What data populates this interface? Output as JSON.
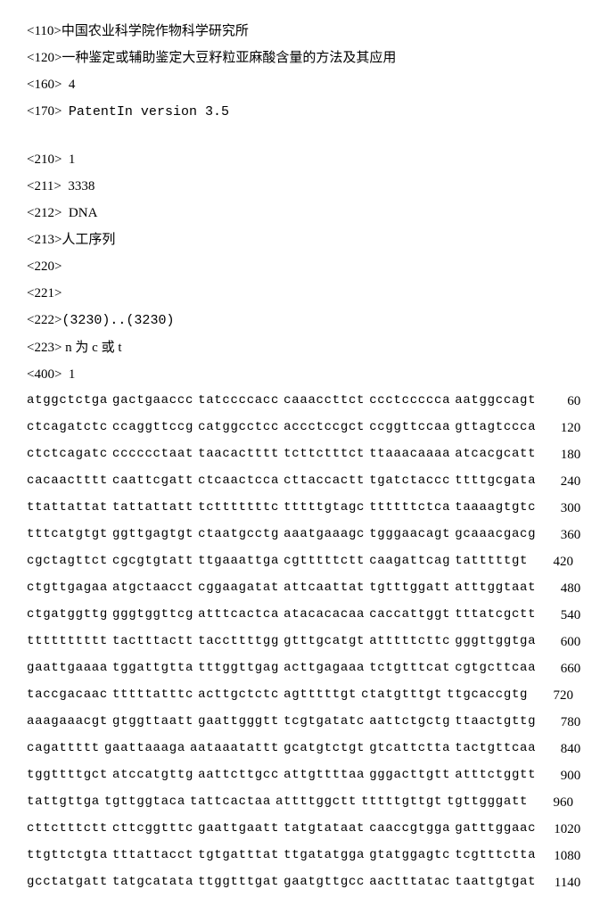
{
  "header": {
    "l110": {
      "tag": "<110>",
      "val": "中国农业科学院作物科学研究所"
    },
    "l120": {
      "tag": "<120>",
      "val": "一种鉴定或辅助鉴定大豆籽粒亚麻酸含量的方法及其应用"
    },
    "l160": {
      "tag": "<160>",
      "val": "4"
    },
    "l170": {
      "tag": "<170>",
      "val": "PatentIn version 3.5"
    },
    "l210": {
      "tag": "<210>",
      "val": "1"
    },
    "l211": {
      "tag": "<211>",
      "val": "3338"
    },
    "l212": {
      "tag": "<212>",
      "val": "DNA"
    },
    "l213": {
      "tag": "<213>",
      "val": "人工序列"
    },
    "l220": {
      "tag": "<220>",
      "val": ""
    },
    "l221": {
      "tag": "<221>",
      "val": ""
    },
    "l222": {
      "tag": "<222>",
      "val": "(3230)..(3230)"
    },
    "l223": {
      "tag": "<223>",
      "val": "n 为 c 或 t"
    },
    "l400": {
      "tag": "<400>",
      "val": "1"
    }
  },
  "sequence": [
    {
      "g": [
        "atggctctga",
        "gactgaaccc",
        "tatccccacc",
        "caaaccttct",
        "ccctccccca",
        "aatggccagt"
      ],
      "n": "60"
    },
    {
      "g": [
        "ctcagatctc",
        "ccaggttccg",
        "catggcctcc",
        "accctccgct",
        "ccggttccaa",
        "gttagtccca"
      ],
      "n": "120"
    },
    {
      "g": [
        "ctctcagatc",
        "cccccctaat",
        "taacactttt",
        "tcttctttct",
        "ttaaacaaaa",
        "atcacgcatt"
      ],
      "n": "180"
    },
    {
      "g": [
        "cacaactttt",
        "caattcgatt",
        "ctcaactcca",
        "cttaccactt",
        "tgatctaccc",
        "ttttgcgata"
      ],
      "n": "240"
    },
    {
      "g": [
        "ttattattat",
        "tattattatt",
        "tctttttttc",
        "tttttgtagc",
        "ttttttctca",
        "taaaagtgtc"
      ],
      "n": "300"
    },
    {
      "g": [
        "tttcatgtgt",
        "ggttgagtgt",
        "ctaatgcctg",
        "aaatgaaagc",
        "tgggaacagt",
        "gcaaacgacg"
      ],
      "n": "360"
    },
    {
      "g": [
        "cgctagttct",
        "cgcgtgtatt",
        "ttgaaattga",
        "cgtttttctt",
        "caagattcag",
        "tatttttgt"
      ],
      "n": "420"
    },
    {
      "g": [
        "ctgttgagaa",
        "atgctaacct",
        "cggaagatat",
        "attcaattat",
        "tgtttggatt",
        "atttggtaat"
      ],
      "n": "480"
    },
    {
      "g": [
        "ctgatggttg",
        "gggtggttcg",
        "atttcactca",
        "atacacacaa",
        "caccattggt",
        "tttatcgctt"
      ],
      "n": "540"
    },
    {
      "g": [
        "tttttttttt",
        "tactttactt",
        "taccttttgg",
        "gtttgcatgt",
        "atttttcttc",
        "gggttggtga"
      ],
      "n": "600"
    },
    {
      "g": [
        "gaattgaaaa",
        "tggattgtta",
        "tttggttgag",
        "acttgagaaa",
        "tctgtttcat",
        "cgtgcttcaa"
      ],
      "n": "660"
    },
    {
      "g": [
        "taccgacaac",
        "tttttatttc",
        "acttgctctc",
        "agtttttgt",
        "ctatgtttgt",
        "ttgcaccgtg"
      ],
      "n": "720"
    },
    {
      "g": [
        "aaagaaacgt",
        "gtggttaatt",
        "gaattgggtt",
        "tcgtgatatc",
        "aattctgctg",
        "ttaactgttg"
      ],
      "n": "780"
    },
    {
      "g": [
        "cagattttt",
        "gaattaaaga",
        "aataaatattt",
        "gcatgtctgt",
        "gtcattctta",
        "tactgttcaa"
      ],
      "n": "840"
    },
    {
      "g": [
        "tggttttgct",
        "atccatgttg",
        "aattcttgcc",
        "attgttttaa",
        "gggacttgtt",
        "atttctggtt"
      ],
      "n": "900"
    },
    {
      "g": [
        "tattgttga",
        "tgttggtaca",
        "tattcactaa",
        "attttggctt",
        "tttttgttgt",
        "tgttgggatt"
      ],
      "n": "960"
    },
    {
      "g": [
        "cttctttctt",
        "cttcggtttc",
        "gaattgaatt",
        "tatgtataat",
        "caaccgtgga",
        "gatttggaac"
      ],
      "n": "1020"
    },
    {
      "g": [
        "ttgttctgta",
        "tttattacct",
        "tgtgatttat",
        "ttgatatgga",
        "gtatggagtc",
        "tcgtttctta"
      ],
      "n": "1080"
    },
    {
      "g": [
        "gcctatgatt",
        "tatgcatata",
        "ttggtttgat",
        "gaatgttgcc",
        "aactttatac",
        "taattgtgat"
      ],
      "n": "1140"
    }
  ]
}
